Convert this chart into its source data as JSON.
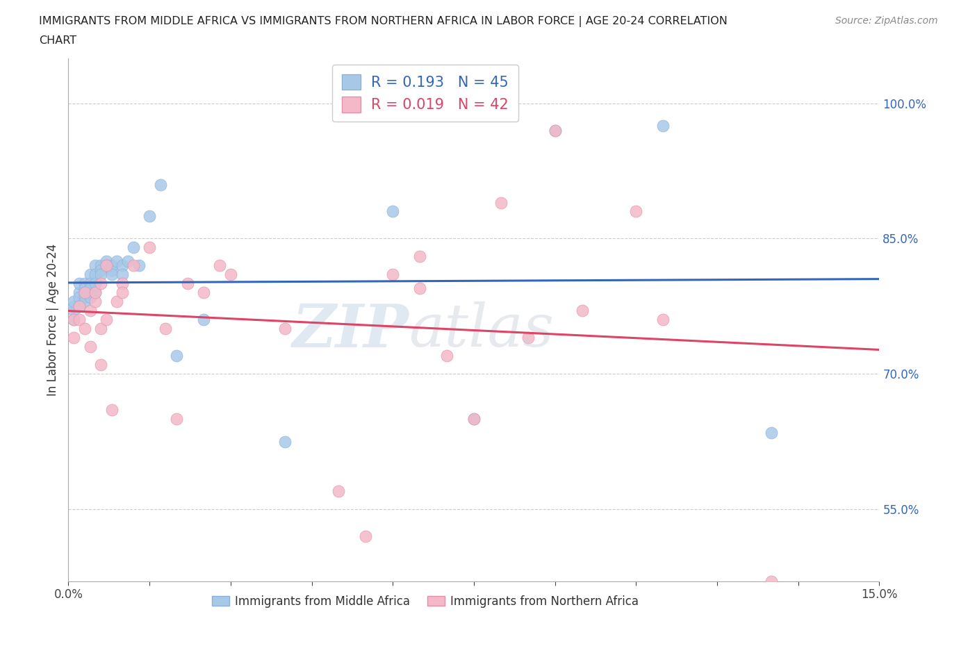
{
  "title_line1": "IMMIGRANTS FROM MIDDLE AFRICA VS IMMIGRANTS FROM NORTHERN AFRICA IN LABOR FORCE | AGE 20-24 CORRELATION",
  "title_line2": "CHART",
  "source_text": "Source: ZipAtlas.com",
  "ylabel": "In Labor Force | Age 20-24",
  "xlim": [
    0.0,
    0.15
  ],
  "ylim": [
    0.47,
    1.05
  ],
  "xticks": [
    0.0,
    0.015,
    0.03,
    0.045,
    0.06,
    0.075,
    0.09,
    0.105,
    0.12,
    0.135,
    0.15
  ],
  "ytick_positions": [
    0.55,
    0.7,
    0.85,
    1.0
  ],
  "yticklabels": [
    "55.0%",
    "70.0%",
    "85.0%",
    "100.0%"
  ],
  "blue_R": 0.193,
  "blue_N": 45,
  "pink_R": 0.019,
  "pink_N": 42,
  "blue_color": "#a8c8e8",
  "pink_color": "#f4b8c8",
  "blue_line_color": "#3366bb",
  "pink_line_color": "#dd4466",
  "grid_color": "#cccccc",
  "background_color": "#ffffff",
  "legend_label_blue": "Immigrants from Middle Africa",
  "legend_label_pink": "Immigrants from Northern Africa",
  "blue_x": [
    0.001,
    0.001,
    0.001,
    0.001,
    0.002,
    0.002,
    0.002,
    0.002,
    0.003,
    0.003,
    0.003,
    0.003,
    0.003,
    0.004,
    0.004,
    0.004,
    0.004,
    0.005,
    0.005,
    0.005,
    0.005,
    0.006,
    0.006,
    0.006,
    0.007,
    0.007,
    0.008,
    0.008,
    0.008,
    0.009,
    0.01,
    0.01,
    0.011,
    0.012,
    0.013,
    0.015,
    0.017,
    0.02,
    0.025,
    0.04,
    0.06,
    0.075,
    0.09,
    0.11,
    0.13
  ],
  "blue_y": [
    0.77,
    0.775,
    0.78,
    0.76,
    0.79,
    0.785,
    0.775,
    0.8,
    0.8,
    0.795,
    0.79,
    0.785,
    0.78,
    0.81,
    0.8,
    0.795,
    0.785,
    0.82,
    0.81,
    0.8,
    0.79,
    0.82,
    0.815,
    0.81,
    0.825,
    0.82,
    0.815,
    0.82,
    0.81,
    0.825,
    0.82,
    0.81,
    0.825,
    0.84,
    0.82,
    0.875,
    0.91,
    0.72,
    0.76,
    0.625,
    0.88,
    0.65,
    0.97,
    0.975,
    0.635
  ],
  "pink_x": [
    0.001,
    0.001,
    0.002,
    0.002,
    0.003,
    0.003,
    0.004,
    0.004,
    0.005,
    0.005,
    0.006,
    0.006,
    0.006,
    0.007,
    0.007,
    0.008,
    0.009,
    0.01,
    0.01,
    0.012,
    0.015,
    0.018,
    0.02,
    0.022,
    0.025,
    0.028,
    0.03,
    0.04,
    0.05,
    0.055,
    0.06,
    0.065,
    0.065,
    0.07,
    0.075,
    0.08,
    0.085,
    0.09,
    0.095,
    0.105,
    0.11,
    0.13
  ],
  "pink_y": [
    0.76,
    0.74,
    0.775,
    0.76,
    0.75,
    0.79,
    0.73,
    0.77,
    0.78,
    0.79,
    0.75,
    0.71,
    0.8,
    0.82,
    0.76,
    0.66,
    0.78,
    0.8,
    0.79,
    0.82,
    0.84,
    0.75,
    0.65,
    0.8,
    0.79,
    0.82,
    0.81,
    0.75,
    0.57,
    0.52,
    0.81,
    0.83,
    0.795,
    0.72,
    0.65,
    0.89,
    0.74,
    0.97,
    0.77,
    0.88,
    0.76,
    0.47
  ]
}
